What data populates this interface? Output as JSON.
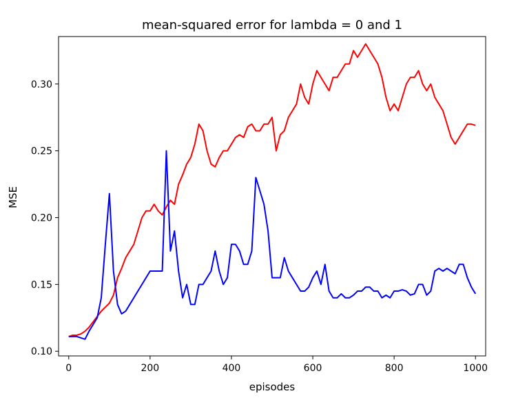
{
  "chart_data": {
    "type": "line",
    "title": "mean-squared error for lambda = 0 and 1",
    "xlabel": "episodes",
    "ylabel": "MSE",
    "xlim": [
      -25,
      1025
    ],
    "ylim": [
      0.0965,
      0.3355
    ],
    "xticks": [
      0,
      200,
      400,
      600,
      800,
      1000
    ],
    "yticks": [
      0.1,
      0.15,
      0.2,
      0.25,
      0.3
    ],
    "xtick_labels": [
      "0",
      "200",
      "400",
      "600",
      "800",
      "1000"
    ],
    "ytick_labels": [
      "0.10",
      "0.15",
      "0.20",
      "0.25",
      "0.30"
    ],
    "grid": false,
    "legend": "none",
    "series": [
      {
        "color": "#ff0000",
        "x": [
          0,
          10,
          20,
          30,
          40,
          50,
          60,
          70,
          80,
          90,
          100,
          110,
          120,
          130,
          140,
          150,
          160,
          170,
          180,
          190,
          200,
          210,
          220,
          230,
          240,
          250,
          260,
          270,
          280,
          290,
          300,
          310,
          320,
          330,
          340,
          350,
          360,
          370,
          380,
          390,
          400,
          410,
          420,
          430,
          440,
          450,
          460,
          470,
          480,
          490,
          500,
          510,
          520,
          530,
          540,
          550,
          560,
          570,
          580,
          590,
          600,
          610,
          620,
          630,
          640,
          650,
          660,
          670,
          680,
          690,
          700,
          710,
          720,
          730,
          740,
          750,
          760,
          770,
          780,
          790,
          800,
          810,
          820,
          830,
          840,
          850,
          860,
          870,
          880,
          890,
          900,
          910,
          920,
          930,
          940,
          950,
          960,
          970,
          980,
          990,
          1000
        ],
        "y": [
          0.111,
          0.112,
          0.112,
          0.113,
          0.115,
          0.118,
          0.122,
          0.126,
          0.13,
          0.133,
          0.136,
          0.142,
          0.155,
          0.162,
          0.17,
          0.175,
          0.18,
          0.19,
          0.2,
          0.205,
          0.205,
          0.21,
          0.205,
          0.202,
          0.208,
          0.213,
          0.21,
          0.225,
          0.232,
          0.24,
          0.245,
          0.255,
          0.27,
          0.265,
          0.25,
          0.24,
          0.238,
          0.245,
          0.25,
          0.25,
          0.255,
          0.26,
          0.262,
          0.26,
          0.268,
          0.27,
          0.265,
          0.265,
          0.27,
          0.27,
          0.275,
          0.25,
          0.262,
          0.265,
          0.275,
          0.28,
          0.285,
          0.3,
          0.29,
          0.285,
          0.3,
          0.31,
          0.305,
          0.3,
          0.295,
          0.305,
          0.305,
          0.31,
          0.315,
          0.315,
          0.325,
          0.32,
          0.325,
          0.33,
          0.325,
          0.32,
          0.315,
          0.305,
          0.29,
          0.28,
          0.285,
          0.28,
          0.29,
          0.3,
          0.305,
          0.305,
          0.31,
          0.3,
          0.295,
          0.3,
          0.29,
          0.285,
          0.28,
          0.27,
          0.26,
          0.255,
          0.26,
          0.265,
          0.27,
          0.27,
          0.269
        ]
      },
      {
        "color": "#0000ff",
        "x": [
          0,
          10,
          20,
          30,
          40,
          50,
          60,
          70,
          80,
          90,
          100,
          110,
          120,
          130,
          140,
          150,
          160,
          170,
          180,
          190,
          200,
          210,
          220,
          230,
          240,
          250,
          260,
          270,
          280,
          290,
          300,
          310,
          320,
          330,
          340,
          350,
          360,
          370,
          380,
          390,
          400,
          410,
          420,
          430,
          440,
          450,
          460,
          470,
          480,
          490,
          500,
          510,
          520,
          530,
          540,
          550,
          560,
          570,
          580,
          590,
          600,
          610,
          620,
          630,
          640,
          650,
          660,
          670,
          680,
          690,
          700,
          710,
          720,
          730,
          740,
          750,
          760,
          770,
          780,
          790,
          800,
          810,
          820,
          830,
          840,
          850,
          860,
          870,
          880,
          890,
          900,
          910,
          920,
          930,
          940,
          950,
          960,
          970,
          980,
          990,
          1000
        ],
        "y": [
          0.111,
          0.111,
          0.111,
          0.11,
          0.109,
          0.115,
          0.12,
          0.125,
          0.14,
          0.18,
          0.218,
          0.16,
          0.135,
          0.128,
          0.13,
          0.135,
          0.14,
          0.145,
          0.15,
          0.155,
          0.16,
          0.16,
          0.16,
          0.16,
          0.25,
          0.175,
          0.19,
          0.16,
          0.14,
          0.15,
          0.135,
          0.135,
          0.15,
          0.15,
          0.155,
          0.16,
          0.175,
          0.16,
          0.15,
          0.155,
          0.18,
          0.18,
          0.175,
          0.165,
          0.165,
          0.175,
          0.23,
          0.22,
          0.21,
          0.19,
          0.155,
          0.155,
          0.155,
          0.17,
          0.16,
          0.155,
          0.15,
          0.145,
          0.145,
          0.148,
          0.155,
          0.16,
          0.15,
          0.165,
          0.145,
          0.14,
          0.14,
          0.143,
          0.14,
          0.14,
          0.142,
          0.145,
          0.145,
          0.148,
          0.148,
          0.145,
          0.145,
          0.14,
          0.142,
          0.14,
          0.145,
          0.145,
          0.146,
          0.145,
          0.142,
          0.143,
          0.15,
          0.15,
          0.142,
          0.145,
          0.16,
          0.162,
          0.16,
          0.162,
          0.16,
          0.158,
          0.165,
          0.165,
          0.155,
          0.148,
          0.143
        ]
      }
    ]
  }
}
